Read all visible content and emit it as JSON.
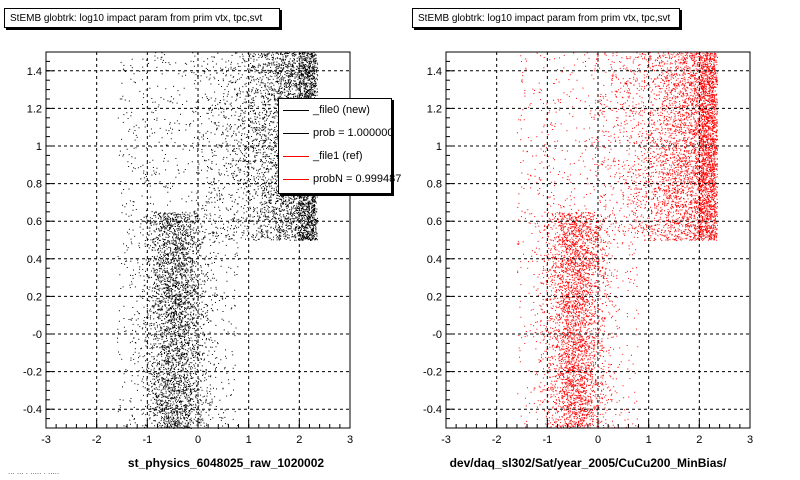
{
  "footer": "... ... . ..... . .....",
  "chart_data": [
    {
      "type": "scatter",
      "title": "StEMB globtrk: log10 impact param from prim vtx, tpc,svt",
      "xlabel": "st_physics_6048025_raw_1020002",
      "ylabel": "",
      "xlim": [
        -3,
        3
      ],
      "ylim": [
        -0.5,
        1.5
      ],
      "x_ticks": [
        -3,
        -2,
        -1,
        0,
        1,
        2,
        3
      ],
      "x_tick_labels": [
        "-3",
        "-2",
        "-1",
        "0",
        "1",
        "2",
        "3"
      ],
      "y_ticks": [
        -0.4,
        -0.2,
        0,
        0.2,
        0.4,
        0.6,
        0.8,
        1,
        1.2,
        1.4
      ],
      "y_tick_labels": [
        "-0.4",
        "-0.2",
        "-0",
        "0.2",
        "0.4",
        "0.6",
        "0.8",
        "1",
        "1.2",
        "1.4"
      ],
      "grid": true,
      "point_color": "#000000",
      "legend_placement": "top-right",
      "legend": [
        {
          "label": "_file0 (new)",
          "color": "#000000"
        },
        {
          "label": "prob = 1.000000",
          "color": "#000000"
        },
        {
          "label": "_file1 (ref)",
          "color": "#ff0000"
        },
        {
          "label": "probN = 0.999487",
          "color": "#ff0000"
        }
      ]
    },
    {
      "type": "scatter",
      "title": "StEMB globtrk: log10 impact param from prim vtx, tpc,svt",
      "xlabel": "dev/daq_sl302/Sat/year_2005/CuCu200_MinBias/",
      "ylabel": "",
      "xlim": [
        -3,
        3
      ],
      "ylim": [
        -0.5,
        1.5
      ],
      "x_ticks": [
        -3,
        -2,
        -1,
        0,
        1,
        2,
        3
      ],
      "x_tick_labels": [
        "-3",
        "-2",
        "-1",
        "0",
        "1",
        "2",
        "3"
      ],
      "y_ticks": [
        -0.4,
        -0.2,
        0,
        0.2,
        0.4,
        0.6,
        0.8,
        1,
        1.2,
        1.4
      ],
      "y_tick_labels": [
        "-0.4",
        "-0.2",
        "-0",
        "0.2",
        "0.4",
        "0.6",
        "0.8",
        "1",
        "1.2",
        "1.4"
      ],
      "grid": true,
      "point_color": "#ff0000"
    }
  ]
}
